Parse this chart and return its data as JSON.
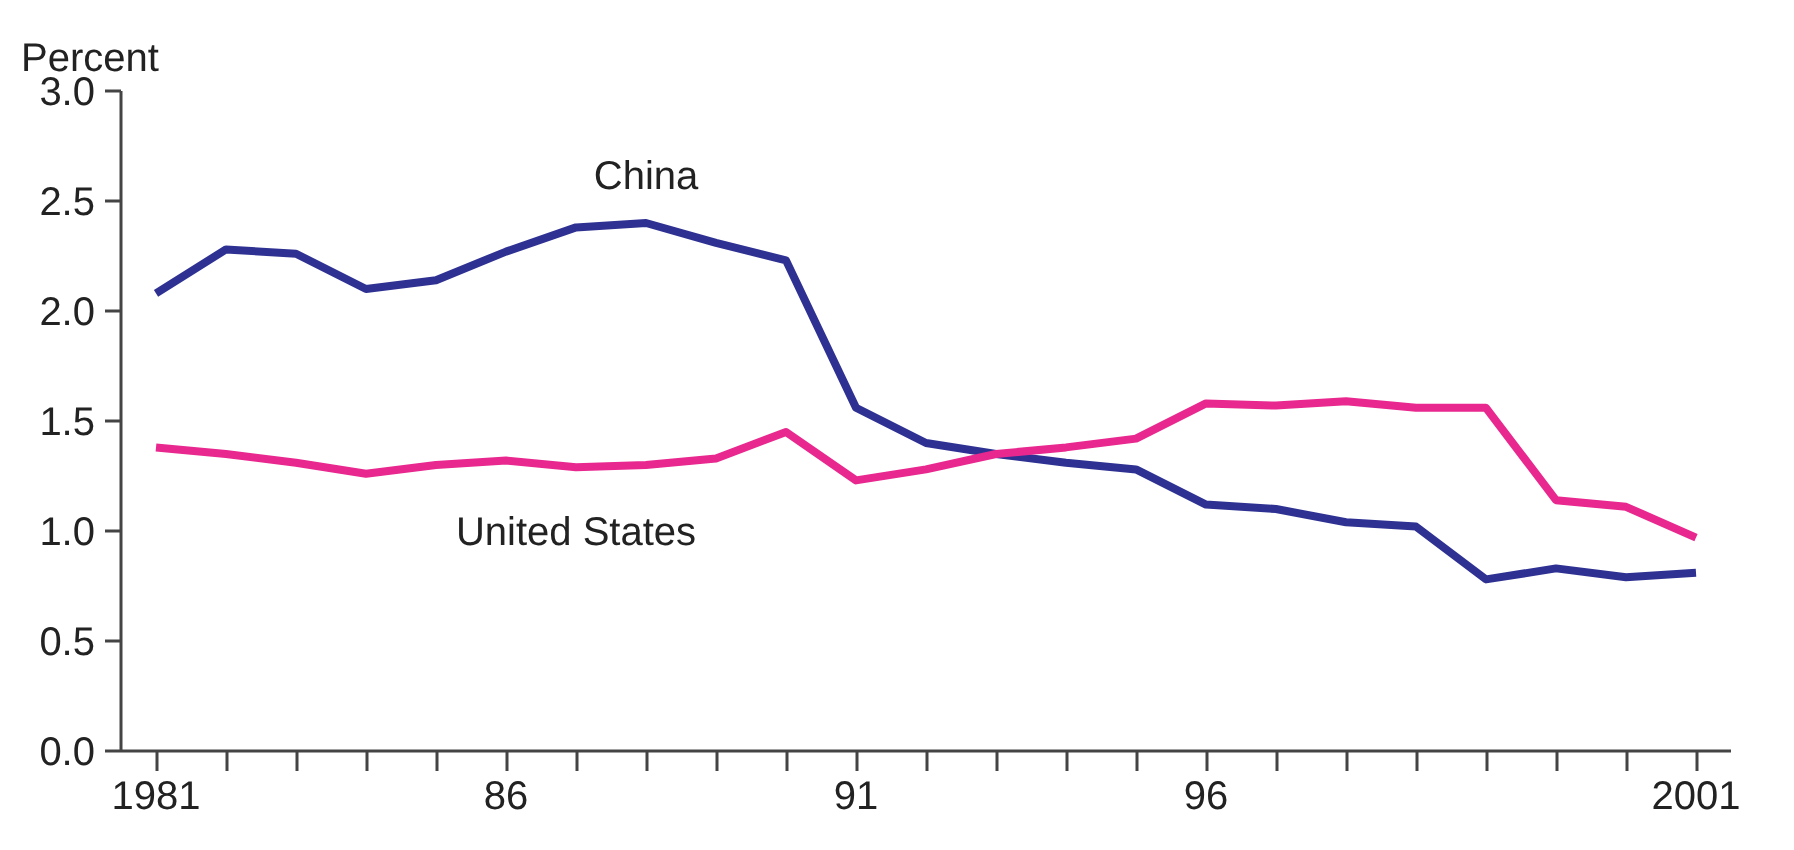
{
  "chart_data": {
    "type": "line",
    "ylabel": "Percent",
    "ylim": [
      0,
      3
    ],
    "categories": [
      "1981",
      null,
      null,
      null,
      null,
      "86",
      null,
      null,
      null,
      null,
      "91",
      null,
      null,
      null,
      null,
      "96",
      null,
      null,
      null,
      null,
      null,
      null,
      "2001"
    ],
    "yticks": [
      {
        "value": 0,
        "label": "0.0"
      },
      {
        "value": 0.5,
        "label": "0.5"
      },
      {
        "value": 1,
        "label": "1.0"
      },
      {
        "value": 1.5,
        "label": "1.5"
      },
      {
        "value": 2,
        "label": "2.0"
      },
      {
        "value": 2.5,
        "label": "2.5"
      },
      {
        "value": 3,
        "label": "3.0"
      }
    ],
    "grid": false,
    "legend": false,
    "marker": "none",
    "line_style": "solid",
    "series": [
      {
        "name": "China",
        "color": "#2e3192",
        "values": [
          2.08,
          2.28,
          2.26,
          2.1,
          2.14,
          2.27,
          2.38,
          2.4,
          2.31,
          2.23,
          1.56,
          1.4,
          1.35,
          1.31,
          1.28,
          1.12,
          1.1,
          1.04,
          1.02,
          0.78,
          0.83,
          0.79,
          0.81
        ]
      },
      {
        "name": "United States",
        "color": "#e8288e",
        "values": [
          1.38,
          1.35,
          1.31,
          1.26,
          1.3,
          1.32,
          1.29,
          1.3,
          1.33,
          1.45,
          1.23,
          1.28,
          1.35,
          1.38,
          1.42,
          1.58,
          1.57,
          1.59,
          1.56,
          1.56,
          1.14,
          1.11,
          0.97
        ]
      }
    ]
  }
}
